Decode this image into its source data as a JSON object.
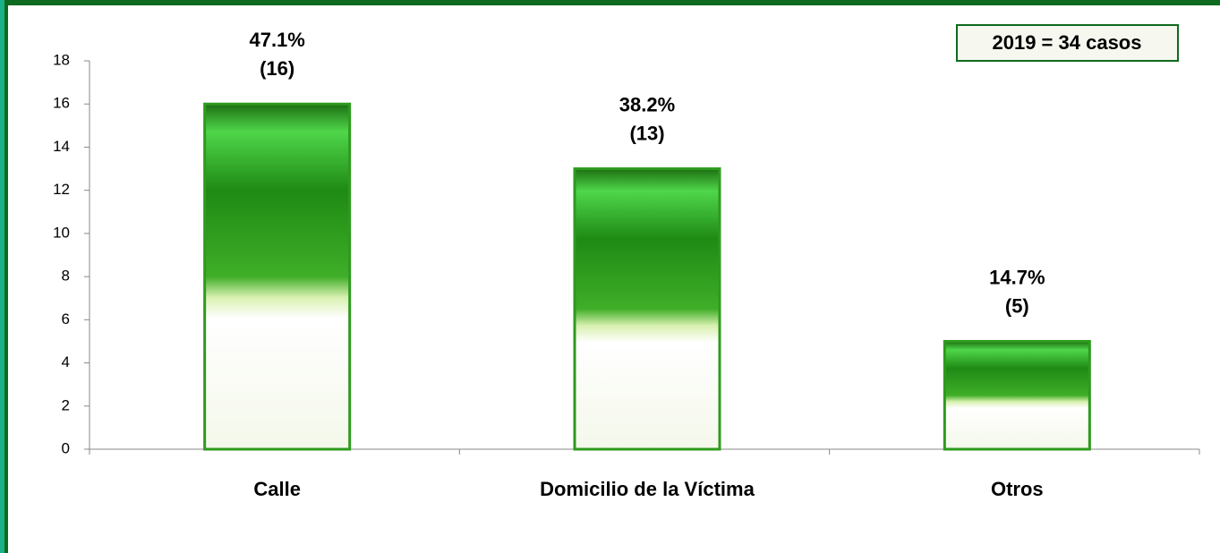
{
  "chart_data": {
    "type": "bar",
    "categories": [
      "Calle",
      "Domicilio de la Víctima",
      "Otros"
    ],
    "values": [
      16,
      13,
      5
    ],
    "value_labels": [
      "(16)",
      "(13)",
      "(5)"
    ],
    "percent_labels": [
      "47.1%",
      "38.2%",
      "14.7%"
    ],
    "annotation": "2019 = 34 casos",
    "color": "#2e9a1e",
    "ylim": [
      0,
      18
    ],
    "yticks": [
      0,
      2,
      4,
      6,
      8,
      10,
      12,
      14,
      16,
      18
    ]
  }
}
